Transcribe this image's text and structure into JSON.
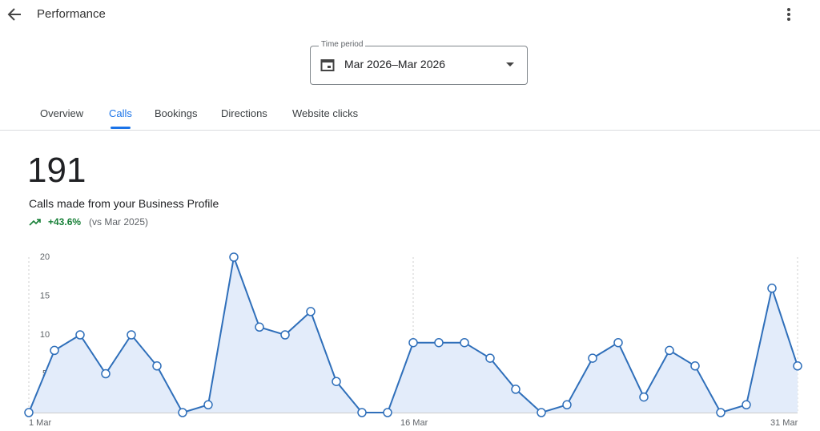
{
  "header": {
    "title": "Performance"
  },
  "time_period": {
    "label": "Time period",
    "value": "Mar 2026–Mar 2026"
  },
  "tabs": [
    "Overview",
    "Calls",
    "Bookings",
    "Directions",
    "Website clicks"
  ],
  "summary": {
    "total": 191,
    "description": "Calls made from your Business Profile",
    "change": "+43.6%",
    "comparison": "(vs Mar 2025)"
  },
  "chart_data": {
    "type": "area",
    "categories": [
      "1 Mar",
      null,
      null,
      null,
      null,
      null,
      null,
      null,
      null,
      null,
      null,
      null,
      null,
      null,
      null,
      "16 Mar",
      null,
      null,
      null,
      null,
      null,
      null,
      null,
      null,
      null,
      null,
      null,
      null,
      null,
      null,
      "31 Mar"
    ],
    "series": [
      {
        "color": "#2f6fba",
        "values": [
          0,
          8,
          10,
          5,
          10,
          6,
          0,
          1,
          20,
          11,
          10,
          13,
          4,
          0,
          0,
          9,
          9,
          9,
          7,
          3,
          0,
          1,
          7,
          9,
          2,
          8,
          6,
          0,
          1,
          16,
          6
        ]
      }
    ],
    "ylim": [
      0,
      20
    ],
    "yticks": [
      5,
      10,
      15,
      20
    ]
  }
}
